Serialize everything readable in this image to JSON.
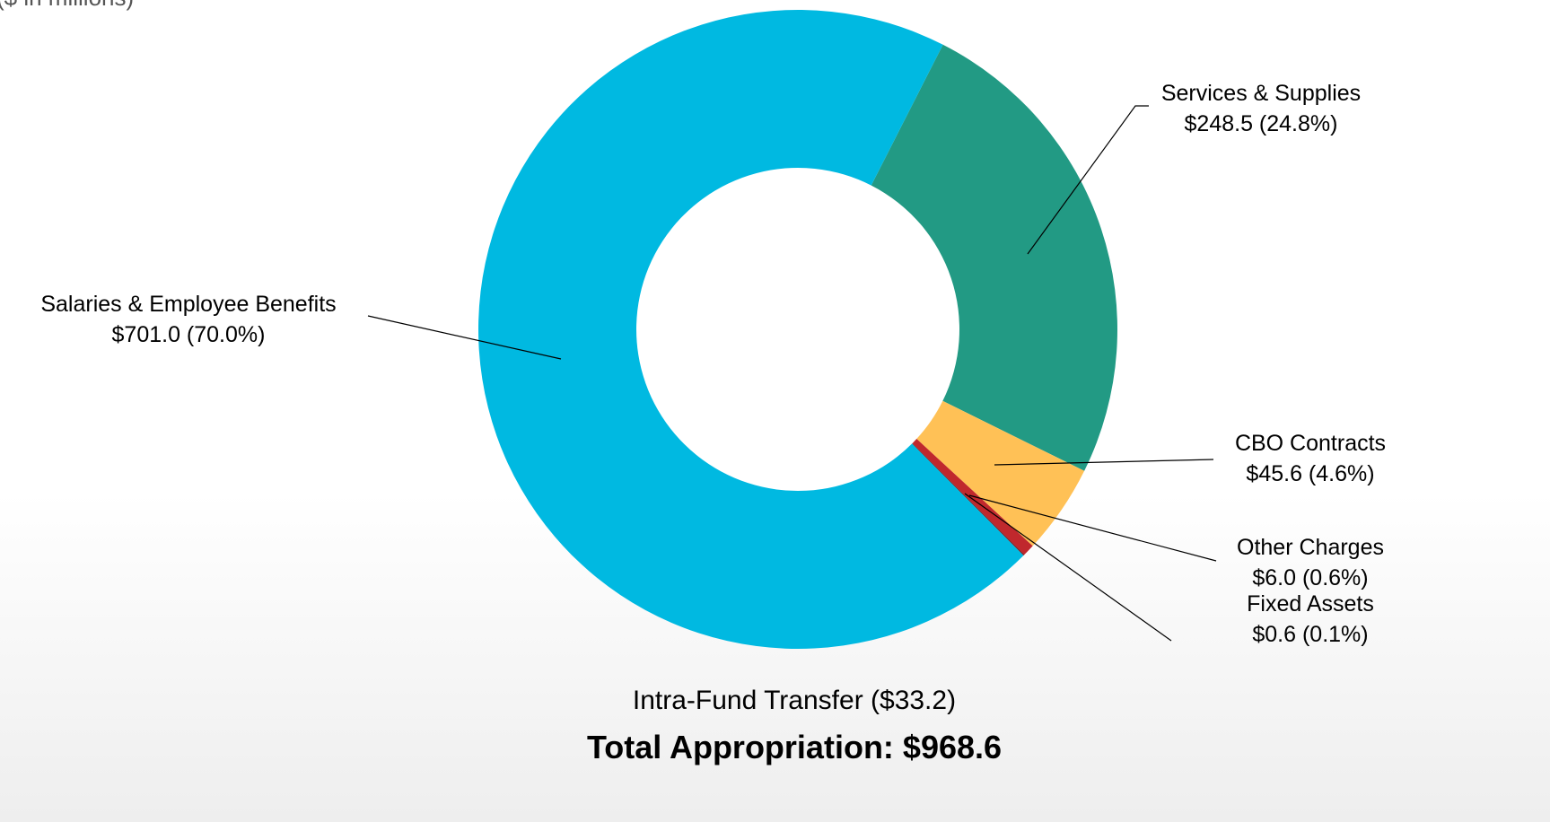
{
  "chart_data": {
    "type": "donut",
    "subtitle": "($ in millions)",
    "categories": [
      "Services & Supplies",
      "CBO Contracts",
      "Other Charges",
      "Fixed Assets",
      "Salaries & Employee Benefits"
    ],
    "values": [
      248.5,
      45.6,
      6.0,
      0.6,
      701.0
    ],
    "value_labels": [
      "$248.5 (24.8%)",
      "$45.6 (4.6%)",
      "$6.0 (0.6%)",
      "$0.6 (0.1%)",
      "$701.0 (70.0%)"
    ],
    "colors": [
      "#229a84",
      "#ffc156",
      "#c0282d",
      "#7a1a1e",
      "#00b9e1"
    ],
    "annotations": [
      "Intra-Fund Transfer ($33.2)",
      "Total Appropriation: $968.6"
    ]
  }
}
